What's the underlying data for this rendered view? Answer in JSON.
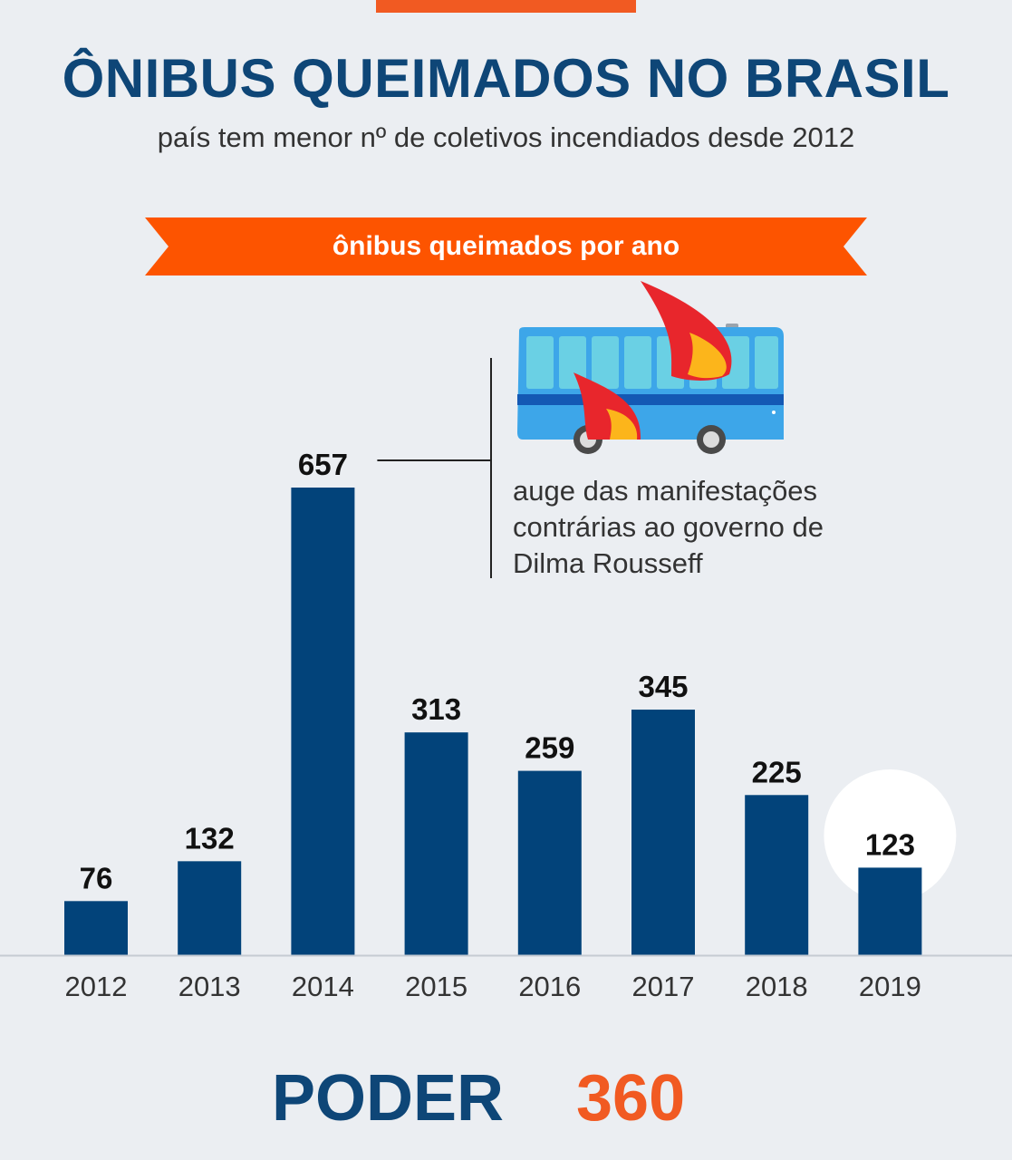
{
  "header": {
    "title": "ÔNIBUS QUEIMADOS NO BRASIL",
    "subtitle": "país tem menor nº de coletivos incendiados desde 2012"
  },
  "banner": {
    "label": "ônibus queimados por ano"
  },
  "annotation": {
    "text": "auge das manifestações contrárias ao governo de Dilma Rousseff",
    "year": "2014"
  },
  "logo": {
    "text_a": "PODER",
    "text_b": "360"
  },
  "colors": {
    "bar": "#02437a",
    "accent": "#f15a22",
    "title": "#0e4677",
    "highlight_circle": "#ffffff"
  },
  "chart_data": {
    "type": "bar",
    "title": "ônibus queimados por ano",
    "categories": [
      "2012",
      "2013",
      "2014",
      "2015",
      "2016",
      "2017",
      "2018",
      "2019"
    ],
    "values": [
      76,
      132,
      657,
      313,
      259,
      345,
      225,
      123
    ],
    "xlabel": "",
    "ylabel": "",
    "ylim": [
      0,
      657
    ],
    "highlight": "2019",
    "grid": false
  }
}
